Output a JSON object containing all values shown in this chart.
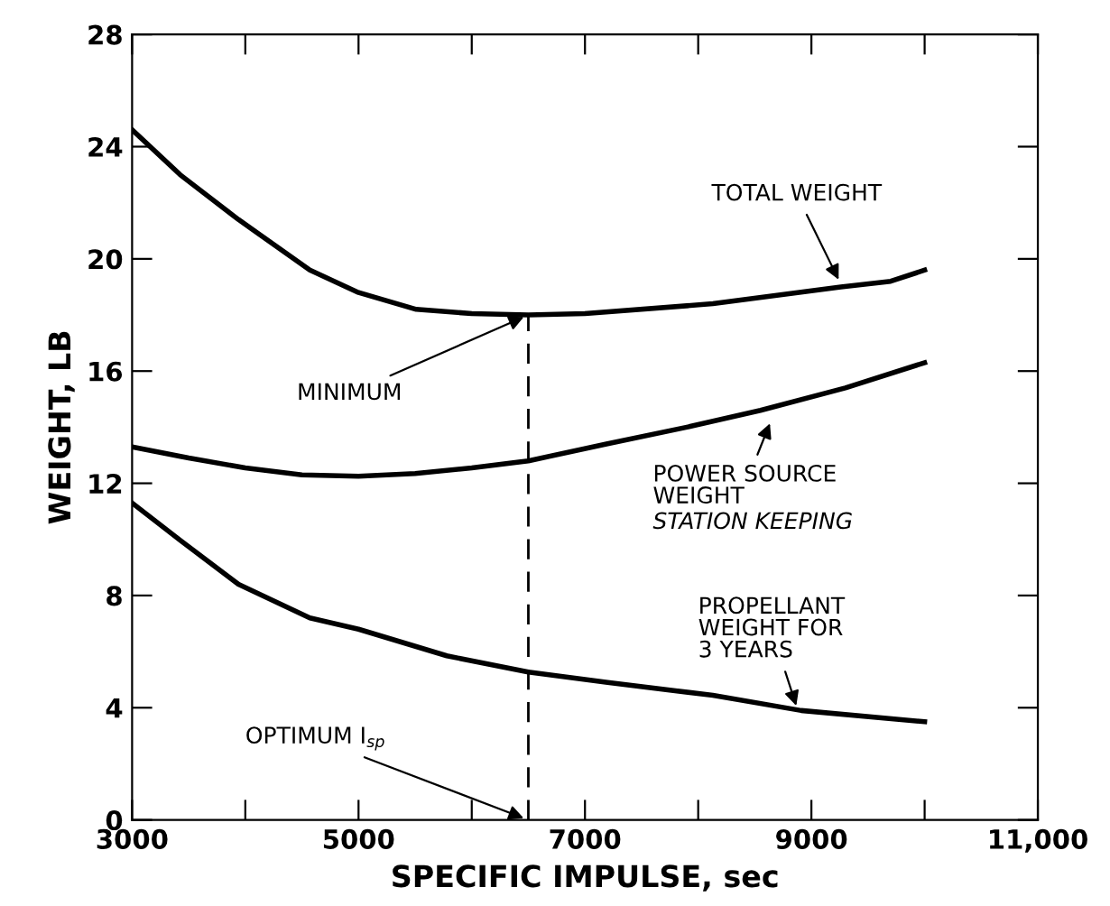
{
  "chart_data": {
    "type": "line",
    "xlabel": "SPECIFIC IMPULSE, sec",
    "ylabel": "WEIGHT, LB",
    "xlim": [
      3000,
      11000
    ],
    "ylim": [
      0,
      28
    ],
    "xticks": [
      3000,
      {
        "value": 4000,
        "label": null
      },
      5000,
      {
        "value": 6000,
        "label": null
      },
      7000,
      {
        "value": 8000,
        "label": null
      },
      9000,
      {
        "value": 10000,
        "label": null
      },
      {
        "value": 11000,
        "label": "11,000"
      }
    ],
    "yticks": [
      0,
      4,
      8,
      12,
      16,
      20,
      24,
      28
    ],
    "grid": false,
    "marker": "none",
    "line_style": "solid",
    "series": [
      {
        "color": "#000000",
        "x": [
          3000,
          3424,
          3940,
          4570,
          5000,
          5510,
          6000,
          6500,
          7000,
          8130,
          9260,
          9700,
          10000
        ],
        "values": [
          24.6,
          23.0,
          21.4,
          19.6,
          18.8,
          18.2,
          18.05,
          18.0,
          18.05,
          18.4,
          19.0,
          19.2,
          19.6
        ]
      },
      {
        "color": "#000000",
        "x": [
          3000,
          3500,
          4000,
          4500,
          5000,
          5500,
          6000,
          6500,
          7190,
          7900,
          8550,
          9300,
          10000
        ],
        "values": [
          13.3,
          12.9,
          12.55,
          12.3,
          12.25,
          12.35,
          12.55,
          12.8,
          13.4,
          14.0,
          14.6,
          15.4,
          16.3
        ]
      },
      {
        "color": "#000000",
        "x": [
          3000,
          3424,
          3940,
          4570,
          5000,
          5780,
          6500,
          7200,
          8130,
          8910,
          10000
        ],
        "values": [
          11.3,
          9.97,
          8.4,
          7.2,
          6.8,
          5.85,
          5.27,
          4.9,
          4.44,
          3.9,
          3.5
        ]
      }
    ],
    "ref_lines": [
      {
        "axis": "x",
        "value": 6500,
        "color": "#000000",
        "line_style": "dashed"
      }
    ],
    "annotations": [
      {
        "text": "TOTAL WEIGHT",
        "x": 9260,
        "y": 19.1
      },
      {
        "text": "MINIMUM",
        "x": 6500,
        "y": 18.0
      },
      {
        "text": "POWER SOURCE\nWEIGHT",
        "x": 8650,
        "y": 14.3
      },
      "STATION KEEPING",
      {
        "text": "PROPELLANT\nWEIGHT FOR\n3 YEARS",
        "x": 8880,
        "y": 3.9
      },
      {
        "text": "OPTIMUM I$_{sp}$",
        "x": 6500,
        "y": 0
      }
    ]
  }
}
